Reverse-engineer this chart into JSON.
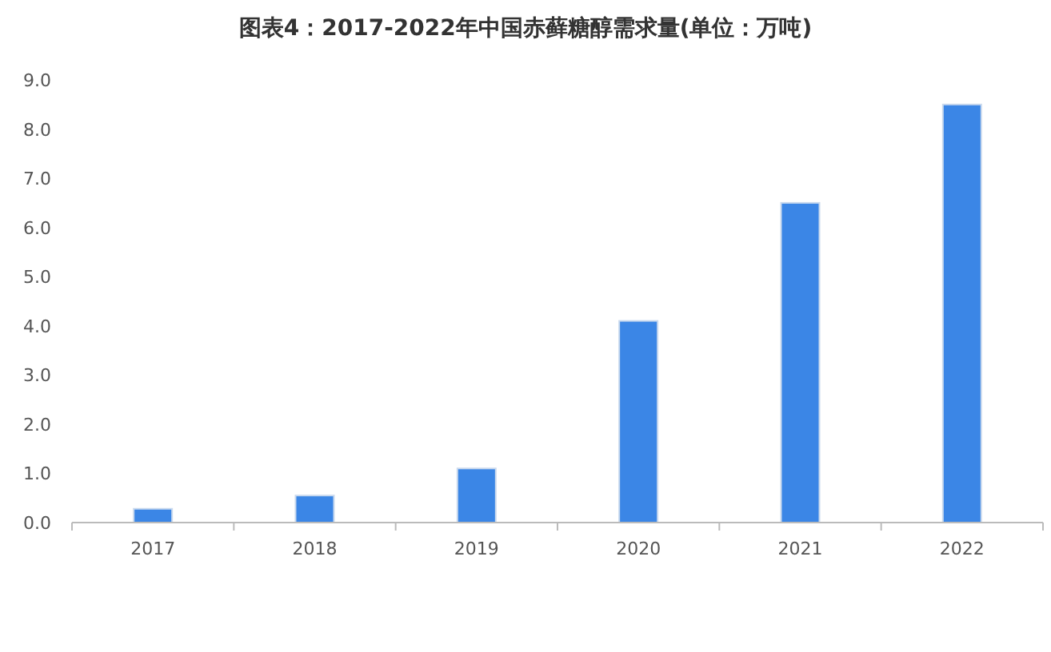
{
  "chart_data": {
    "type": "bar",
    "title": "图表4：2017-2022年中国赤藓糖醇需求量(单位：万吨)",
    "categories": [
      "2017",
      "2018",
      "2019",
      "2020",
      "2021",
      "2022"
    ],
    "values": [
      0.28,
      0.55,
      1.1,
      4.1,
      6.5,
      8.5
    ],
    "color": "#3b86e6",
    "ylim": [
      0,
      9
    ],
    "yticks": [
      {
        "value": 0,
        "label": "0.0"
      },
      {
        "value": 1,
        "label": "1.0"
      },
      {
        "value": 2,
        "label": "2.0"
      },
      {
        "value": 3,
        "label": "3.0"
      },
      {
        "value": 4,
        "label": "4.0"
      },
      {
        "value": 5,
        "label": "5.0"
      },
      {
        "value": 6,
        "label": "6.0"
      },
      {
        "value": 7,
        "label": "7.0"
      },
      {
        "value": 8,
        "label": "8.0"
      },
      {
        "value": 9,
        "label": "9.0"
      }
    ],
    "grid": false,
    "legend": false
  }
}
